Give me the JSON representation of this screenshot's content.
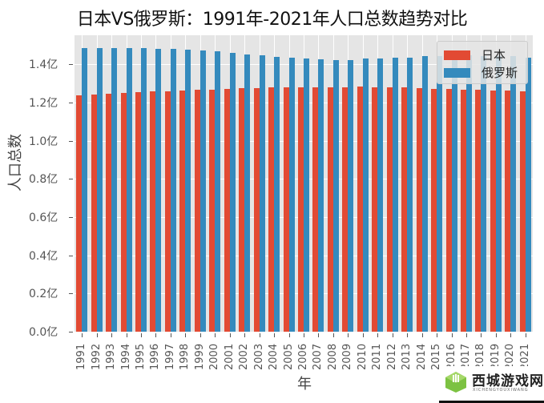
{
  "title": "日本VS俄罗斯：1991年-2021年人口总数趋势对比",
  "colors": {
    "japan": "#e24a33",
    "russia": "#348abd",
    "plot_bg": "#e5e5e5",
    "grid": "#ffffff"
  },
  "legend": {
    "items": [
      {
        "label": "日本",
        "color": "#e24a33"
      },
      {
        "label": "俄罗斯",
        "color": "#348abd"
      }
    ]
  },
  "axes": {
    "xlabel": "年",
    "ylabel": "人口总数",
    "yticks": [
      "0.0亿",
      "0.2亿",
      "0.4亿",
      "0.6亿",
      "0.8亿",
      "1.0亿",
      "1.2亿",
      "1.4亿"
    ]
  },
  "watermark": {
    "text": "西城游戏网",
    "sub": "XICHENGYOUXIWANG"
  },
  "chart_data": {
    "type": "bar",
    "title": "日本VS俄罗斯：1991年-2021年人口总数趋势对比",
    "xlabel": "年",
    "ylabel": "人口总数",
    "unit": "亿",
    "ylim": [
      0,
      1.55
    ],
    "grid": true,
    "legend_position": "upper right",
    "categories": [
      "1991",
      "1992",
      "1993",
      "1994",
      "1995",
      "1996",
      "1997",
      "1998",
      "1999",
      "2000",
      "2001",
      "2002",
      "2003",
      "2004",
      "2005",
      "2006",
      "2007",
      "2008",
      "2009",
      "2010",
      "2011",
      "2012",
      "2013",
      "2014",
      "2015",
      "2016",
      "2017",
      "2018",
      "2019",
      "2020",
      "2021"
    ],
    "series": [
      {
        "name": "日本",
        "color": "#e24a33",
        "values": [
          1.238,
          1.242,
          1.247,
          1.25,
          1.254,
          1.257,
          1.26,
          1.263,
          1.265,
          1.268,
          1.271,
          1.274,
          1.276,
          1.277,
          1.277,
          1.277,
          1.278,
          1.28,
          1.28,
          1.281,
          1.28,
          1.278,
          1.277,
          1.275,
          1.271,
          1.27,
          1.268,
          1.266,
          1.263,
          1.261,
          1.257
        ]
      },
      {
        "name": "俄罗斯",
        "color": "#348abd",
        "values": [
          1.483,
          1.485,
          1.485,
          1.484,
          1.483,
          1.481,
          1.479,
          1.476,
          1.473,
          1.466,
          1.46,
          1.452,
          1.446,
          1.44,
          1.434,
          1.428,
          1.424,
          1.422,
          1.421,
          1.429,
          1.429,
          1.432,
          1.435,
          1.441,
          1.443,
          1.444,
          1.445,
          1.444,
          1.444,
          1.442,
          1.434
        ]
      }
    ]
  }
}
